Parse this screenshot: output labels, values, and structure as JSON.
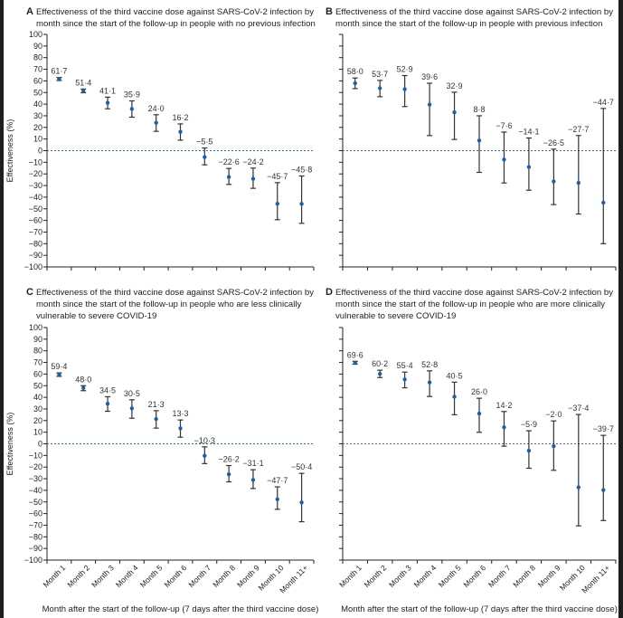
{
  "chart_data": {
    "type": "scatter",
    "ylabel": "Effectiveness (%)",
    "xlabel": "Month after the start of the follow-up (7 days after the third vaccine dose)",
    "ylim": [
      -100,
      100
    ],
    "yticks": [
      100,
      90,
      80,
      70,
      60,
      50,
      40,
      30,
      20,
      10,
      0,
      -10,
      -20,
      -30,
      -40,
      -50,
      -60,
      -70,
      -80,
      -90,
      -100
    ],
    "categories": [
      "Month 1",
      "Month 2",
      "Month 3",
      "Month 4",
      "Month 5",
      "Month 6",
      "Month 7",
      "Month 8",
      "Month 9",
      "Month 10",
      "Month 11+"
    ],
    "reference_line": 0,
    "colors": {
      "point": "#1f5fa8",
      "errorbar": "#333333",
      "reference_line": "#2f6f7f"
    },
    "panels": [
      {
        "letter": "A",
        "title_lines": [
          "Effectiveness of the third vaccine dose against SARS-CoV-2 infection by",
          "month since the start of the follow-up in people with no previous infection"
        ],
        "values": [
          61.7,
          51.4,
          41.1,
          35.9,
          24.0,
          16.2,
          -5.5,
          -22.6,
          -24.2,
          -45.7,
          -45.8
        ],
        "ci_low": [
          60.3,
          49.8,
          36.0,
          28.8,
          16.6,
          9.0,
          -12.2,
          -29.0,
          -32.4,
          -59.4,
          -62.5
        ],
        "ci_high": [
          63.0,
          53.0,
          46.0,
          42.8,
          30.9,
          23.0,
          2.3,
          -15.3,
          -15.0,
          -27.5,
          -21.8
        ]
      },
      {
        "letter": "B",
        "title_lines": [
          "Effectiveness of the third vaccine dose against SARS-CoV-2 infection by",
          "month since the start of the follow-up in people with previous infection"
        ],
        "values": [
          58.0,
          53.7,
          52.9,
          39.6,
          32.9,
          8.8,
          -7.6,
          -14.1,
          -26.5,
          -27.7,
          -44.7
        ],
        "ci_low": [
          53.4,
          46.4,
          37.9,
          13.0,
          9.6,
          -18.7,
          -27.8,
          -34.0,
          -46.4,
          -54.5,
          -80.0
        ],
        "ci_high": [
          62.5,
          60.4,
          64.6,
          58.0,
          50.3,
          30.0,
          16.0,
          10.9,
          1.3,
          13.0,
          36.3
        ]
      },
      {
        "letter": "C",
        "title_lines": [
          "Effectiveness of the third vaccine dose against SARS-CoV-2 infection by",
          "month since the start of the follow-up in people who are less clinically",
          "vulnerable to severe COVID-19"
        ],
        "values": [
          59.4,
          48.0,
          34.5,
          30.5,
          21.3,
          13.3,
          -10.3,
          -26.2,
          -31.1,
          -47.7,
          -50.4
        ],
        "ci_low": [
          58.0,
          45.7,
          28.0,
          22.0,
          13.5,
          5.7,
          -17.0,
          -32.7,
          -38.4,
          -56.3,
          -67.0
        ],
        "ci_high": [
          61.0,
          50.0,
          40.5,
          37.9,
          28.5,
          20.5,
          -2.6,
          -18.7,
          -22.3,
          -37.0,
          -25.4
        ]
      },
      {
        "letter": "D",
        "title_lines": [
          "Effectiveness of the third vaccine dose against SARS-CoV-2 infection by",
          "month since the start of the follow-up in people who are more clinically",
          "vulnerable to severe COVID-19"
        ],
        "values": [
          69.6,
          60.2,
          55.4,
          52.8,
          40.5,
          26.0,
          14.2,
          -5.9,
          -2.0,
          -37.4,
          -39.7
        ],
        "ci_low": [
          68.5,
          57.0,
          48.2,
          40.7,
          25.0,
          9.9,
          -2.0,
          -21.0,
          -22.8,
          -70.6,
          -66.0
        ],
        "ci_high": [
          71.0,
          63.3,
          61.7,
          62.8,
          53.0,
          39.2,
          27.8,
          11.2,
          19.7,
          25.2,
          7.3
        ]
      }
    ]
  }
}
